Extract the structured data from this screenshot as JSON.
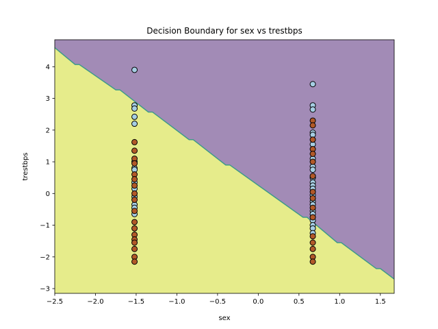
{
  "chart_data": {
    "type": "scatter",
    "title": "Decision Boundary for sex vs trestbps",
    "xlabel": "sex",
    "ylabel": "trestbps",
    "xlim": [
      -2.5,
      1.67
    ],
    "ylim": [
      -3.15,
      4.85
    ],
    "xticks": [
      -2.5,
      -2.0,
      -1.5,
      -1.0,
      -0.5,
      0.0,
      0.5,
      1.0,
      1.5
    ],
    "xtick_labels": [
      "−2.5",
      "−2.0",
      "−1.5",
      "−1.0",
      "−0.5",
      "0.0",
      "0.5",
      "1.0",
      "1.5"
    ],
    "yticks": [
      -3,
      -2,
      -1,
      0,
      1,
      2,
      3,
      4
    ],
    "ytick_labels": [
      "−3",
      "−2",
      "−1",
      "0",
      "1",
      "2",
      "3",
      "4"
    ],
    "grid": false,
    "decision_boundary": {
      "points": [
        [
          -2.5,
          4.6
        ],
        [
          -2.25,
          4.07
        ],
        [
          -2.2,
          4.07
        ],
        [
          -1.75,
          3.27
        ],
        [
          -1.7,
          3.27
        ],
        [
          -1.35,
          2.57
        ],
        [
          -1.3,
          2.57
        ],
        [
          -0.85,
          1.7
        ],
        [
          -0.8,
          1.7
        ],
        [
          -0.4,
          0.9
        ],
        [
          -0.35,
          0.9
        ],
        [
          0.55,
          -0.75
        ],
        [
          0.6,
          -0.75
        ],
        [
          0.97,
          -1.55
        ],
        [
          1.02,
          -1.55
        ],
        [
          1.45,
          -2.37
        ],
        [
          1.5,
          -2.37
        ],
        [
          1.67,
          -2.7
        ]
      ],
      "upper_region_color": "#a28bb6",
      "lower_region_color": "#e6ec8b",
      "line_color": "#3e9a8a"
    },
    "series": [
      {
        "color": "#a6cee3",
        "points": [
          [
            -1.52,
            3.9
          ],
          [
            -1.52,
            2.78
          ],
          [
            -1.52,
            2.68
          ],
          [
            -1.52,
            2.42
          ],
          [
            -1.52,
            2.2
          ],
          [
            -1.52,
            1.0
          ],
          [
            -1.52,
            0.8
          ],
          [
            -1.52,
            0.75
          ],
          [
            -1.52,
            0.35
          ],
          [
            -1.52,
            0.15
          ],
          [
            -1.52,
            -0.1
          ],
          [
            -1.52,
            -0.35
          ],
          [
            -1.52,
            -0.45
          ],
          [
            -1.52,
            -0.65
          ],
          [
            0.67,
            3.45
          ],
          [
            0.67,
            2.78
          ],
          [
            0.67,
            2.65
          ],
          [
            0.67,
            1.92
          ],
          [
            0.67,
            1.85
          ],
          [
            0.67,
            1.55
          ],
          [
            0.67,
            1.1
          ],
          [
            0.67,
            0.85
          ],
          [
            0.67,
            0.75
          ],
          [
            0.67,
            0.5
          ],
          [
            0.67,
            0.35
          ],
          [
            0.67,
            0.25
          ],
          [
            0.67,
            0.15
          ],
          [
            0.67,
            -0.05
          ],
          [
            0.67,
            -0.25
          ],
          [
            0.67,
            -0.35
          ],
          [
            0.67,
            -0.55
          ],
          [
            0.67,
            -0.65
          ],
          [
            0.67,
            -0.85
          ],
          [
            0.67,
            -1.0
          ],
          [
            0.67,
            -1.1
          ],
          [
            0.67,
            -1.25
          ]
        ]
      },
      {
        "color": "#b15928",
        "points": [
          [
            -1.52,
            1.62
          ],
          [
            -1.52,
            1.35
          ],
          [
            -1.52,
            1.1
          ],
          [
            -1.52,
            0.95
          ],
          [
            -1.52,
            0.6
          ],
          [
            -1.52,
            0.45
          ],
          [
            -1.52,
            0.25
          ],
          [
            -1.52,
            0.0
          ],
          [
            -1.52,
            -0.2
          ],
          [
            -1.52,
            -0.55
          ],
          [
            -1.52,
            -0.9
          ],
          [
            -1.52,
            -1.1
          ],
          [
            -1.52,
            -1.3
          ],
          [
            -1.52,
            -1.45
          ],
          [
            -1.52,
            -1.55
          ],
          [
            -1.52,
            -1.75
          ],
          [
            -1.52,
            -2.0
          ],
          [
            -1.52,
            -2.15
          ],
          [
            0.67,
            2.3
          ],
          [
            0.67,
            2.15
          ],
          [
            0.67,
            1.7
          ],
          [
            0.67,
            1.4
          ],
          [
            0.67,
            1.25
          ],
          [
            0.67,
            1.0
          ],
          [
            0.67,
            0.55
          ],
          [
            0.67,
            0.05
          ],
          [
            0.67,
            -0.15
          ],
          [
            0.67,
            -0.45
          ],
          [
            0.67,
            -0.75
          ],
          [
            0.67,
            -1.35
          ],
          [
            0.67,
            -1.55
          ],
          [
            0.67,
            -1.75
          ],
          [
            0.67,
            -2.0
          ],
          [
            0.67,
            -2.15
          ]
        ]
      }
    ]
  }
}
